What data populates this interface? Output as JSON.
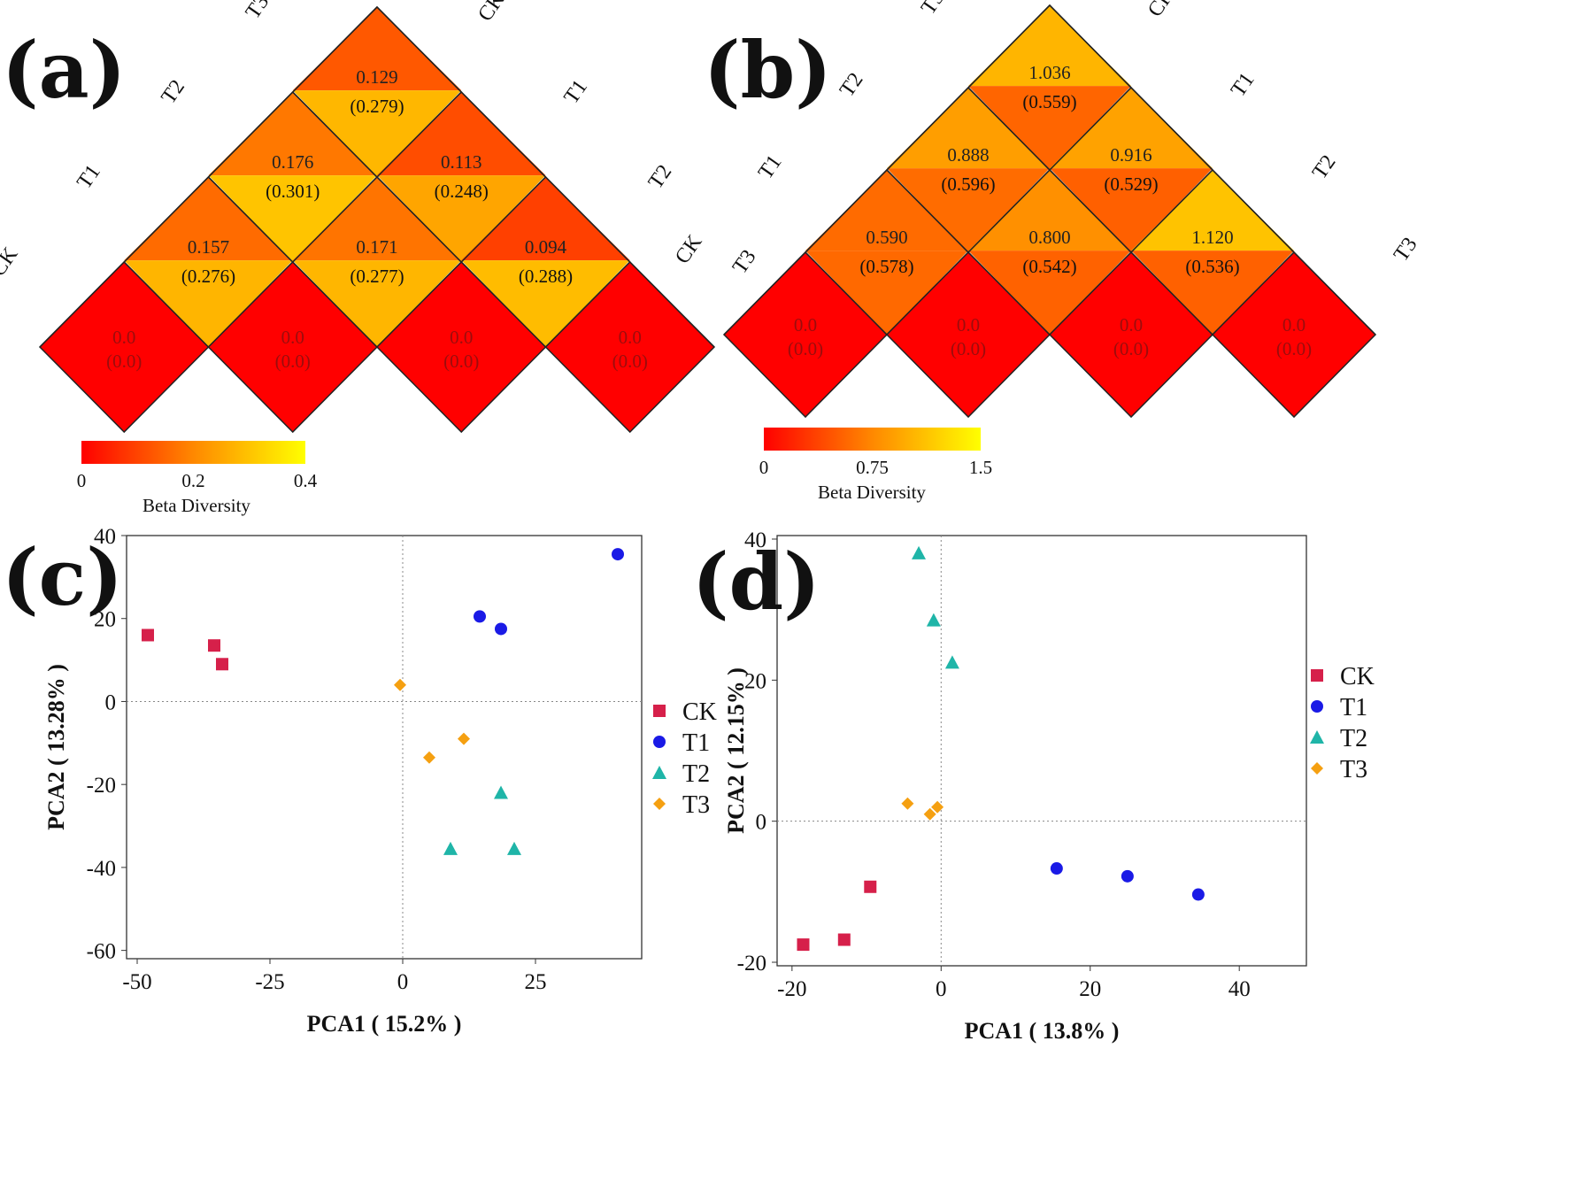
{
  "chart_data": [
    {
      "panel": "(a)",
      "type": "heatmap",
      "title": "",
      "groups": [
        "CK",
        "T1",
        "T2",
        "T3"
      ],
      "pairs": [
        {
          "a": "CK",
          "b": "T1",
          "value": "0.157",
          "sub": "(0.276)",
          "v": 0.157,
          "s": 0.276
        },
        {
          "a": "T1",
          "b": "T2",
          "value": "0.171",
          "sub": "(0.277)",
          "v": 0.171,
          "s": 0.277
        },
        {
          "a": "T2",
          "b": "T3",
          "value": "0.094",
          "sub": "(0.288)",
          "v": 0.094,
          "s": 0.288
        },
        {
          "a": "CK",
          "b": "T2",
          "value": "0.176",
          "sub": "(0.301)",
          "v": 0.176,
          "s": 0.301
        },
        {
          "a": "T1",
          "b": "T3",
          "value": "0.113",
          "sub": "(0.248)",
          "v": 0.113,
          "s": 0.248
        },
        {
          "a": "CK",
          "b": "T3",
          "value": "0.129",
          "sub": "(0.279)",
          "v": 0.129,
          "s": 0.279
        }
      ],
      "diagonal": {
        "value": "0.0",
        "sub": "(0.0)"
      },
      "colorbar": {
        "label": "Beta Diversity",
        "min": 0,
        "max": 0.4,
        "ticks": [
          "0",
          "0.2",
          "0.4"
        ]
      }
    },
    {
      "panel": "(b)",
      "type": "heatmap",
      "title": "",
      "groups": [
        "CK",
        "T1",
        "T2",
        "T3"
      ],
      "pairs": [
        {
          "a": "CK",
          "b": "T1",
          "value": "0.590",
          "sub": "(0.578)",
          "v": 0.59,
          "s": 0.578
        },
        {
          "a": "T1",
          "b": "T2",
          "value": "0.800",
          "sub": "(0.542)",
          "v": 0.8,
          "s": 0.542
        },
        {
          "a": "T2",
          "b": "T3",
          "value": "1.120",
          "sub": "(0.536)",
          "v": 1.12,
          "s": 0.536
        },
        {
          "a": "CK",
          "b": "T2",
          "value": "0.888",
          "sub": "(0.596)",
          "v": 0.888,
          "s": 0.596
        },
        {
          "a": "T1",
          "b": "T3",
          "value": "0.916",
          "sub": "(0.529)",
          "v": 0.916,
          "s": 0.529
        },
        {
          "a": "CK",
          "b": "T3",
          "value": "1.036",
          "sub": "(0.559)",
          "v": 1.036,
          "s": 0.559
        }
      ],
      "diagonal": {
        "value": "0.0",
        "sub": "(0.0)"
      },
      "colorbar": {
        "label": "Beta Diversity",
        "min": 0,
        "max": 1.5,
        "ticks": [
          "0",
          "0.75",
          "1.5"
        ]
      }
    },
    {
      "panel": "(c)",
      "type": "scatter",
      "xlabel": "PCA1 ( 15.2% )",
      "ylabel": "PCA2 ( 13.28% )",
      "xlim": [
        -52,
        45
      ],
      "ylim": [
        -62,
        40
      ],
      "xticks": [
        -50,
        -25,
        0,
        25
      ],
      "yticks": [
        -60,
        -40,
        -20,
        0,
        20,
        40
      ],
      "legend_position": "right",
      "series": [
        {
          "name": "CK",
          "marker": "square",
          "color": "#d6204a",
          "points": [
            [
              -48,
              16
            ],
            [
              -35.5,
              13.5
            ],
            [
              -34,
              9
            ]
          ]
        },
        {
          "name": "T1",
          "marker": "circle",
          "color": "#1a1ae6",
          "points": [
            [
              14.5,
              20.5
            ],
            [
              18.5,
              17.5
            ],
            [
              40.5,
              35.5
            ]
          ]
        },
        {
          "name": "T2",
          "marker": "triangle",
          "color": "#1fb5a8",
          "points": [
            [
              18.5,
              -22
            ],
            [
              9,
              -35.5
            ],
            [
              21,
              -35.5
            ]
          ]
        },
        {
          "name": "T3",
          "marker": "diamond",
          "color": "#f5a011",
          "points": [
            [
              -0.5,
              4
            ],
            [
              11.5,
              -9
            ],
            [
              5,
              -13.5
            ]
          ]
        }
      ]
    },
    {
      "panel": "(d)",
      "type": "scatter",
      "xlabel": "PCA1 ( 13.8% )",
      "ylabel": "PCA2 ( 12.15% )",
      "xlim": [
        -22,
        49
      ],
      "ylim": [
        -20.5,
        40.5
      ],
      "xticks": [
        -20,
        0,
        20,
        40
      ],
      "yticks": [
        -20,
        0,
        20,
        40
      ],
      "legend_position": "right",
      "series": [
        {
          "name": "CK",
          "marker": "square",
          "color": "#d6204a",
          "points": [
            [
              -18.5,
              -17.5
            ],
            [
              -13,
              -16.8
            ],
            [
              -9.5,
              -9.3
            ]
          ]
        },
        {
          "name": "T1",
          "marker": "circle",
          "color": "#1a1ae6",
          "points": [
            [
              15.5,
              -6.7
            ],
            [
              25,
              -7.8
            ],
            [
              34.5,
              -10.4
            ]
          ]
        },
        {
          "name": "T2",
          "marker": "triangle",
          "color": "#1fb5a8",
          "points": [
            [
              -3,
              38
            ],
            [
              -1,
              28.5
            ],
            [
              1.5,
              22.5
            ]
          ]
        },
        {
          "name": "T3",
          "marker": "diamond",
          "color": "#f5a011",
          "points": [
            [
              -4.5,
              2.5
            ],
            [
              -1.5,
              1
            ],
            [
              -0.5,
              2
            ]
          ]
        }
      ]
    }
  ],
  "colors": {
    "low": "#ff0000",
    "mid": "#ff8800",
    "high": "#ffff00"
  }
}
